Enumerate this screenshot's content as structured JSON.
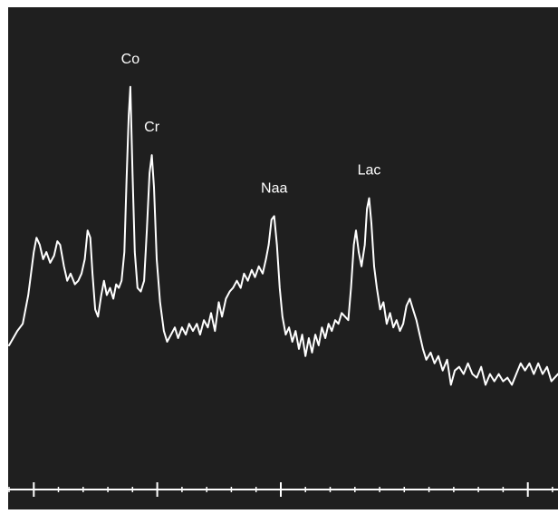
{
  "chart_data": {
    "type": "line",
    "title": "",
    "xlabel": "",
    "ylabel": "",
    "grid": false,
    "xlim": [
      0,
      100
    ],
    "ylim": [
      0,
      100
    ],
    "series": [
      {
        "points": [
          [
            0,
            24
          ],
          [
            1.5,
            28
          ],
          [
            2.5,
            30
          ],
          [
            3.5,
            38
          ],
          [
            4.5,
            50
          ],
          [
            5,
            54
          ],
          [
            5.6,
            52
          ],
          [
            6.2,
            48
          ],
          [
            6.8,
            50
          ],
          [
            7.5,
            47
          ],
          [
            8.2,
            49
          ],
          [
            8.8,
            53
          ],
          [
            9.3,
            52
          ],
          [
            10,
            46
          ],
          [
            10.6,
            42
          ],
          [
            11.2,
            44
          ],
          [
            12,
            41
          ],
          [
            12.6,
            42
          ],
          [
            13.2,
            44
          ],
          [
            13.8,
            48
          ],
          [
            14.3,
            56
          ],
          [
            14.8,
            54
          ],
          [
            15.2,
            44
          ],
          [
            15.7,
            34
          ],
          [
            16.2,
            32
          ],
          [
            16.8,
            38
          ],
          [
            17.3,
            42
          ],
          [
            17.8,
            38
          ],
          [
            18.4,
            40
          ],
          [
            19,
            37
          ],
          [
            19.5,
            41
          ],
          [
            20,
            40
          ],
          [
            20.5,
            42
          ],
          [
            21,
            50
          ],
          [
            21.4,
            70
          ],
          [
            21.8,
            88
          ],
          [
            22.1,
            96
          ],
          [
            22.5,
            72
          ],
          [
            22.9,
            50
          ],
          [
            23.4,
            40
          ],
          [
            24,
            39
          ],
          [
            24.6,
            42
          ],
          [
            25.1,
            56
          ],
          [
            25.6,
            72
          ],
          [
            26,
            77
          ],
          [
            26.4,
            68
          ],
          [
            26.9,
            48
          ],
          [
            27.5,
            36
          ],
          [
            28.2,
            28
          ],
          [
            28.8,
            25
          ],
          [
            29.5,
            27
          ],
          [
            30.2,
            29
          ],
          [
            30.8,
            26
          ],
          [
            31.5,
            29
          ],
          [
            32.2,
            27
          ],
          [
            32.8,
            30
          ],
          [
            33.5,
            28
          ],
          [
            34.2,
            30
          ],
          [
            34.8,
            27
          ],
          [
            35.5,
            31
          ],
          [
            36.2,
            29
          ],
          [
            36.8,
            33
          ],
          [
            37.5,
            28
          ],
          [
            38.2,
            36
          ],
          [
            38.8,
            32
          ],
          [
            39.5,
            37
          ],
          [
            40.2,
            39
          ],
          [
            40.8,
            40
          ],
          [
            41.5,
            42
          ],
          [
            42.2,
            40
          ],
          [
            42.8,
            44
          ],
          [
            43.5,
            42
          ],
          [
            44.2,
            45
          ],
          [
            44.8,
            43
          ],
          [
            45.5,
            46
          ],
          [
            46.2,
            44
          ],
          [
            46.8,
            48
          ],
          [
            47.3,
            52
          ],
          [
            47.8,
            59
          ],
          [
            48.3,
            60
          ],
          [
            48.8,
            52
          ],
          [
            49.3,
            40
          ],
          [
            49.8,
            32
          ],
          [
            50.4,
            27
          ],
          [
            51,
            29
          ],
          [
            51.6,
            25
          ],
          [
            52.2,
            28
          ],
          [
            52.8,
            23
          ],
          [
            53.4,
            27
          ],
          [
            54,
            21
          ],
          [
            54.6,
            26
          ],
          [
            55.2,
            22
          ],
          [
            55.8,
            27
          ],
          [
            56.4,
            24
          ],
          [
            57,
            29
          ],
          [
            57.6,
            26
          ],
          [
            58.2,
            30
          ],
          [
            58.8,
            28
          ],
          [
            59.4,
            31
          ],
          [
            60,
            30
          ],
          [
            60.6,
            33
          ],
          [
            61.2,
            32
          ],
          [
            61.8,
            31
          ],
          [
            62.3,
            40
          ],
          [
            62.8,
            52
          ],
          [
            63.2,
            56
          ],
          [
            63.7,
            50
          ],
          [
            64.2,
            46
          ],
          [
            64.8,
            52
          ],
          [
            65.2,
            62
          ],
          [
            65.6,
            65
          ],
          [
            66,
            58
          ],
          [
            66.5,
            46
          ],
          [
            67,
            40
          ],
          [
            67.6,
            34
          ],
          [
            68.2,
            36
          ],
          [
            68.8,
            30
          ],
          [
            69.4,
            33
          ],
          [
            70,
            29
          ],
          [
            70.6,
            31
          ],
          [
            71.2,
            28
          ],
          [
            71.8,
            30
          ],
          [
            72.4,
            35
          ],
          [
            73,
            37
          ],
          [
            73.6,
            34
          ],
          [
            74.2,
            31
          ],
          [
            74.8,
            27
          ],
          [
            75.4,
            23
          ],
          [
            76,
            20
          ],
          [
            76.8,
            22
          ],
          [
            77.5,
            19
          ],
          [
            78.2,
            21
          ],
          [
            79,
            17
          ],
          [
            79.8,
            20
          ],
          [
            80.5,
            13
          ],
          [
            81.2,
            17
          ],
          [
            82,
            18
          ],
          [
            82.8,
            16
          ],
          [
            83.6,
            19
          ],
          [
            84.4,
            16
          ],
          [
            85.2,
            15
          ],
          [
            86,
            18
          ],
          [
            86.8,
            13
          ],
          [
            87.6,
            16
          ],
          [
            88.4,
            14
          ],
          [
            89.2,
            16
          ],
          [
            90,
            14
          ],
          [
            90.8,
            15
          ],
          [
            91.6,
            13
          ],
          [
            92.4,
            16
          ],
          [
            93.2,
            19
          ],
          [
            94,
            17
          ],
          [
            94.8,
            19
          ],
          [
            95.6,
            16
          ],
          [
            96.4,
            19
          ],
          [
            97.2,
            16
          ],
          [
            98,
            18
          ],
          [
            98.8,
            14
          ],
          [
            100,
            16
          ]
        ]
      }
    ],
    "annotations": [
      {
        "text": "Co",
        "x": 22.1,
        "y": 96
      },
      {
        "text": "Cr",
        "x": 26.0,
        "y": 77
      },
      {
        "text": "Naa",
        "x": 48.3,
        "y": 60
      },
      {
        "text": "Lac",
        "x": 65.6,
        "y": 65
      }
    ],
    "axis_ticks": {
      "minor": [
        0,
        4.5,
        9,
        13.5,
        18,
        22.5,
        27,
        31.5,
        36,
        40.5,
        45,
        49.5,
        54,
        58.5,
        63,
        67.5,
        72,
        76.5,
        81,
        85.5,
        90,
        94.5,
        99
      ],
      "major": [
        4.5,
        27,
        49.5,
        94.5
      ]
    },
    "colors": {
      "background": "#1f1f1f",
      "line": "#ffffff",
      "text": "#ffffff"
    }
  }
}
